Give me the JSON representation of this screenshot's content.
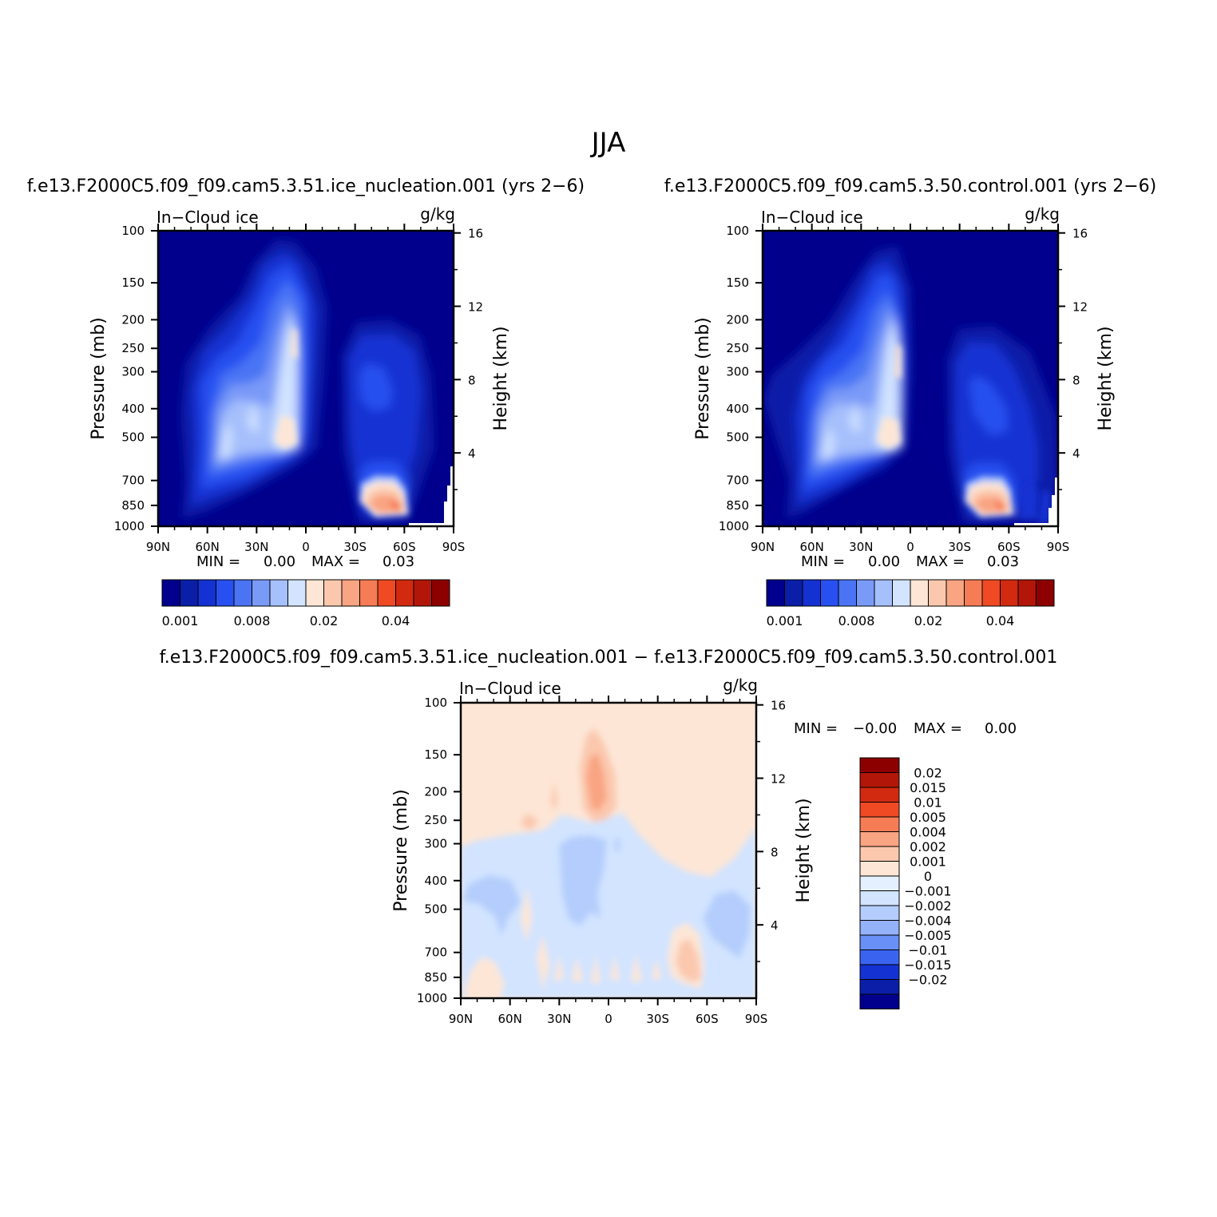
{
  "figure_title": "JJA",
  "chart_data": [
    {
      "type": "heatmap",
      "title": "f.e13.F2000C5.f09_f09.cam5.3.51.ice_nucleation.001  (yrs 2−6)",
      "left_label": "In−Cloud ice",
      "right_label": "g/kg",
      "xlabel": "",
      "ylabel": "Pressure (mb)",
      "ylabel_right": "Height (km)",
      "x_ticks": [
        "90N",
        "60N",
        "30N",
        "0",
        "30S",
        "60S",
        "90S"
      ],
      "y_ticks": [
        "100",
        "150",
        "200",
        "250",
        "300",
        "400",
        "500",
        "700",
        "850",
        "1000"
      ],
      "y_right_ticks": [
        "16",
        "12",
        "8",
        "4"
      ],
      "min_label": "MIN =",
      "min_value": "0.00",
      "max_label": "MAX =",
      "max_value": "0.03",
      "colorbar_labels": [
        "0.001",
        "0.008",
        "0.02",
        "0.04"
      ]
    },
    {
      "type": "heatmap",
      "title": "f.e13.F2000C5.f09_f09.cam5.3.50.control.001  (yrs 2−6)",
      "left_label": "In−Cloud ice",
      "right_label": "g/kg",
      "xlabel": "",
      "ylabel": "Pressure (mb)",
      "ylabel_right": "Height (km)",
      "x_ticks": [
        "90N",
        "60N",
        "30N",
        "0",
        "30S",
        "60S",
        "90S"
      ],
      "y_ticks": [
        "100",
        "150",
        "200",
        "250",
        "300",
        "400",
        "500",
        "700",
        "850",
        "1000"
      ],
      "y_right_ticks": [
        "16",
        "12",
        "8",
        "4"
      ],
      "min_label": "MIN =",
      "min_value": "0.00",
      "max_label": "MAX =",
      "max_value": "0.03",
      "colorbar_labels": [
        "0.001",
        "0.008",
        "0.02",
        "0.04"
      ]
    },
    {
      "type": "heatmap",
      "title": "f.e13.F2000C5.f09_f09.cam5.3.51.ice_nucleation.001  −  f.e13.F2000C5.f09_f09.cam5.3.50.control.001",
      "left_label": "In−Cloud ice",
      "right_label": "g/kg",
      "xlabel": "",
      "ylabel": "Pressure (mb)",
      "ylabel_right": "Height (km)",
      "x_ticks": [
        "90N",
        "60N",
        "30N",
        "0",
        "30S",
        "60S",
        "90S"
      ],
      "y_ticks": [
        "100",
        "150",
        "200",
        "250",
        "300",
        "400",
        "500",
        "700",
        "850",
        "1000"
      ],
      "y_right_ticks": [
        "16",
        "12",
        "8",
        "4"
      ],
      "min_label": "MIN =",
      "min_value": "−0.00",
      "max_label": "MAX =",
      "max_value": "0.00",
      "colorbar_labels": [
        "0.02",
        "0.015",
        "0.01",
        "0.005",
        "0.004",
        "0.002",
        "0.001",
        "0",
        "−0.001",
        "−0.002",
        "−0.004",
        "−0.005",
        "−0.01",
        "−0.015",
        "−0.02"
      ]
    }
  ],
  "colors": {
    "background": "#ffffff",
    "sequential": [
      "#00008c",
      "#0a1ea8",
      "#1432d2",
      "#2850f0",
      "#4a74f4",
      "#7a9af8",
      "#a6c0fc",
      "#d2e4ff",
      "#fde6d6",
      "#fbc8ae",
      "#f9a482",
      "#f67c56",
      "#f04a24",
      "#d22a10",
      "#b21608",
      "#8c0000"
    ],
    "diverging": [
      "#8c0000",
      "#b21608",
      "#d22a10",
      "#f04a24",
      "#f67c56",
      "#f9a482",
      "#fbc8ae",
      "#fde6d6",
      "#e4f0ff",
      "#d2e4ff",
      "#b4cdfc",
      "#94b2fa",
      "#6890f6",
      "#3a64f0",
      "#1432d2",
      "#0a1ea8",
      "#00008c"
    ]
  }
}
